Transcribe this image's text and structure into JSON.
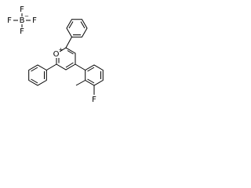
{
  "counterion": {
    "fluorine_top": "F",
    "fluorine_left": "F",
    "boron": "B",
    "charge": "−",
    "fluorine_right": "F",
    "fluorine_bottom": "F"
  },
  "cation": {
    "oxygen": "O",
    "charge": "+",
    "fluorine": "F"
  }
}
